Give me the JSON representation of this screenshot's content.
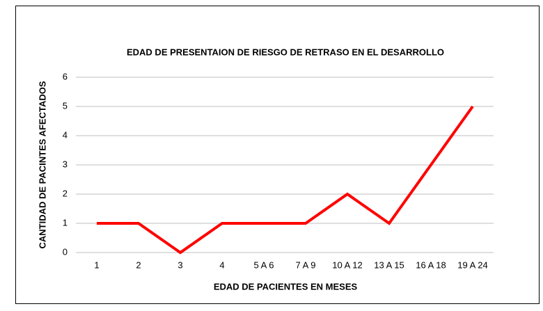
{
  "chart_data": {
    "type": "line",
    "title": "EDAD DE PRESENTAION DE RIESGO DE RETRASO EN EL DESARROLLO",
    "x_label": "EDAD DE PACIENTES EN MESES",
    "y_label": "CANTIDAD DE PACINTES AFECTADOS",
    "categories": [
      "1",
      "2",
      "3",
      "4",
      "5 A 6",
      "7 A 9",
      "10 A 12",
      "13 A 15",
      "16 A 18",
      "19 A 24"
    ],
    "values": [
      1,
      1,
      0,
      1,
      1,
      1,
      2,
      1,
      3,
      5
    ],
    "color": "#ff0000",
    "ylim": [
      0,
      6
    ],
    "yticks": [
      0,
      1,
      2,
      3,
      4,
      5,
      6
    ],
    "grid": true
  }
}
